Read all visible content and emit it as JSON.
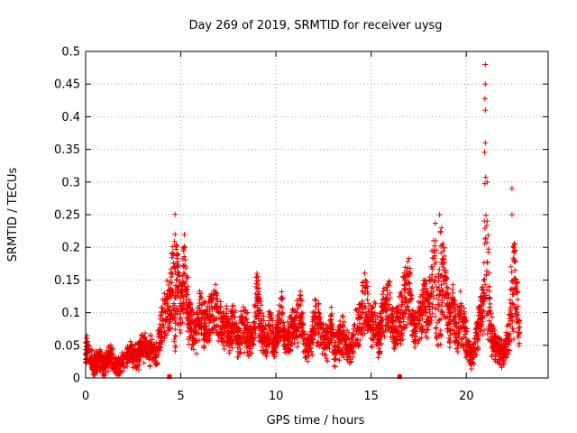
{
  "chart_data": {
    "type": "scatter",
    "title": "Day 269 of 2019, SRMTID for receiver uysg",
    "xlabel": "GPS time / hours",
    "ylabel": "SRMTID / TECUs",
    "xlim": [
      0,
      24.3
    ],
    "ylim": [
      0,
      0.5
    ],
    "x_ticks": [
      0,
      5,
      10,
      15,
      20
    ],
    "x_tick_labels": [
      "0",
      "5",
      "10",
      "15",
      "20"
    ],
    "y_ticks": [
      0,
      0.05,
      0.1,
      0.15,
      0.2,
      0.25,
      0.3,
      0.35,
      0.4,
      0.45,
      0.5
    ],
    "y_tick_labels": [
      "0",
      "0.05",
      "0.1",
      "0.15",
      "0.2",
      "0.25",
      "0.3",
      "0.35",
      "0.4",
      "0.45",
      "0.5"
    ],
    "grid": true,
    "marker": "+",
    "marker_color": "#ee0000",
    "series": [
      {
        "name": "SRMTID",
        "x": [
          0.1,
          0.3,
          0.5,
          0.7,
          0.9,
          1.1,
          1.3,
          1.5,
          1.7,
          1.9,
          2.1,
          2.3,
          2.5,
          2.7,
          2.9,
          3.1,
          3.3,
          3.5,
          3.7,
          3.9,
          4.0,
          4.2,
          4.4,
          4.5,
          4.6,
          4.7,
          4.8,
          5.0,
          5.2,
          5.4,
          5.6,
          5.8,
          6.0,
          6.2,
          6.4,
          6.6,
          6.8,
          7.0,
          7.2,
          7.4,
          7.6,
          7.8,
          8.0,
          8.2,
          8.4,
          8.6,
          8.8,
          9.0,
          9.1,
          9.3,
          9.5,
          9.7,
          9.9,
          10.1,
          10.3,
          10.5,
          10.7,
          10.9,
          11.1,
          11.3,
          11.5,
          11.7,
          11.9,
          12.1,
          12.3,
          12.5,
          12.7,
          12.9,
          13.1,
          13.3,
          13.5,
          13.7,
          13.9,
          14.1,
          14.3,
          14.5,
          14.7,
          14.8,
          15.0,
          15.2,
          15.4,
          15.6,
          15.8,
          16.0,
          16.2,
          16.4,
          16.6,
          16.8,
          17.0,
          17.2,
          17.4,
          17.6,
          17.8,
          18.0,
          18.2,
          18.4,
          18.6,
          18.7,
          18.9,
          19.1,
          19.3,
          19.5,
          19.7,
          19.9,
          20.1,
          20.3,
          20.5,
          20.7,
          20.9,
          21.0,
          21.0,
          21.0,
          21.0,
          21.1,
          21.1,
          21.2,
          21.3,
          21.5,
          21.7,
          21.9,
          22.1,
          22.3,
          22.4,
          22.4,
          22.5,
          22.6,
          22.7,
          22.8
        ],
        "y": [
          0.05,
          0.03,
          0.025,
          0.035,
          0.02,
          0.03,
          0.04,
          0.025,
          0.02,
          0.03,
          0.035,
          0.04,
          0.045,
          0.04,
          0.05,
          0.06,
          0.045,
          0.05,
          0.04,
          0.07,
          0.1,
          0.12,
          0.13,
          0.16,
          0.19,
          0.22,
          0.17,
          0.13,
          0.2,
          0.11,
          0.09,
          0.08,
          0.12,
          0.1,
          0.095,
          0.11,
          0.13,
          0.1,
          0.085,
          0.09,
          0.08,
          0.1,
          0.07,
          0.085,
          0.09,
          0.075,
          0.07,
          0.16,
          0.12,
          0.08,
          0.06,
          0.1,
          0.055,
          0.09,
          0.12,
          0.06,
          0.08,
          0.09,
          0.1,
          0.12,
          0.06,
          0.05,
          0.08,
          0.11,
          0.09,
          0.07,
          0.06,
          0.09,
          0.05,
          0.07,
          0.08,
          0.06,
          0.05,
          0.08,
          0.09,
          0.11,
          0.15,
          0.12,
          0.09,
          0.1,
          0.07,
          0.11,
          0.12,
          0.13,
          0.08,
          0.1,
          0.11,
          0.15,
          0.16,
          0.09,
          0.1,
          0.11,
          0.14,
          0.12,
          0.17,
          0.21,
          0.25,
          0.23,
          0.15,
          0.1,
          0.13,
          0.08,
          0.11,
          0.09,
          0.05,
          0.04,
          0.07,
          0.1,
          0.13,
          0.48,
          0.45,
          0.41,
          0.36,
          0.3,
          0.24,
          0.14,
          0.08,
          0.06,
          0.05,
          0.04,
          0.06,
          0.08,
          0.29,
          0.25,
          0.2,
          0.15,
          0.12,
          0.07
        ],
        "cloud": {
          "count": 3800,
          "x_range": [
            0,
            22.8
          ],
          "seed": 269
        }
      }
    ],
    "markers_on_axis": [
      {
        "x": 4.4,
        "y": 0
      },
      {
        "x": 16.5,
        "y": 0
      }
    ]
  }
}
